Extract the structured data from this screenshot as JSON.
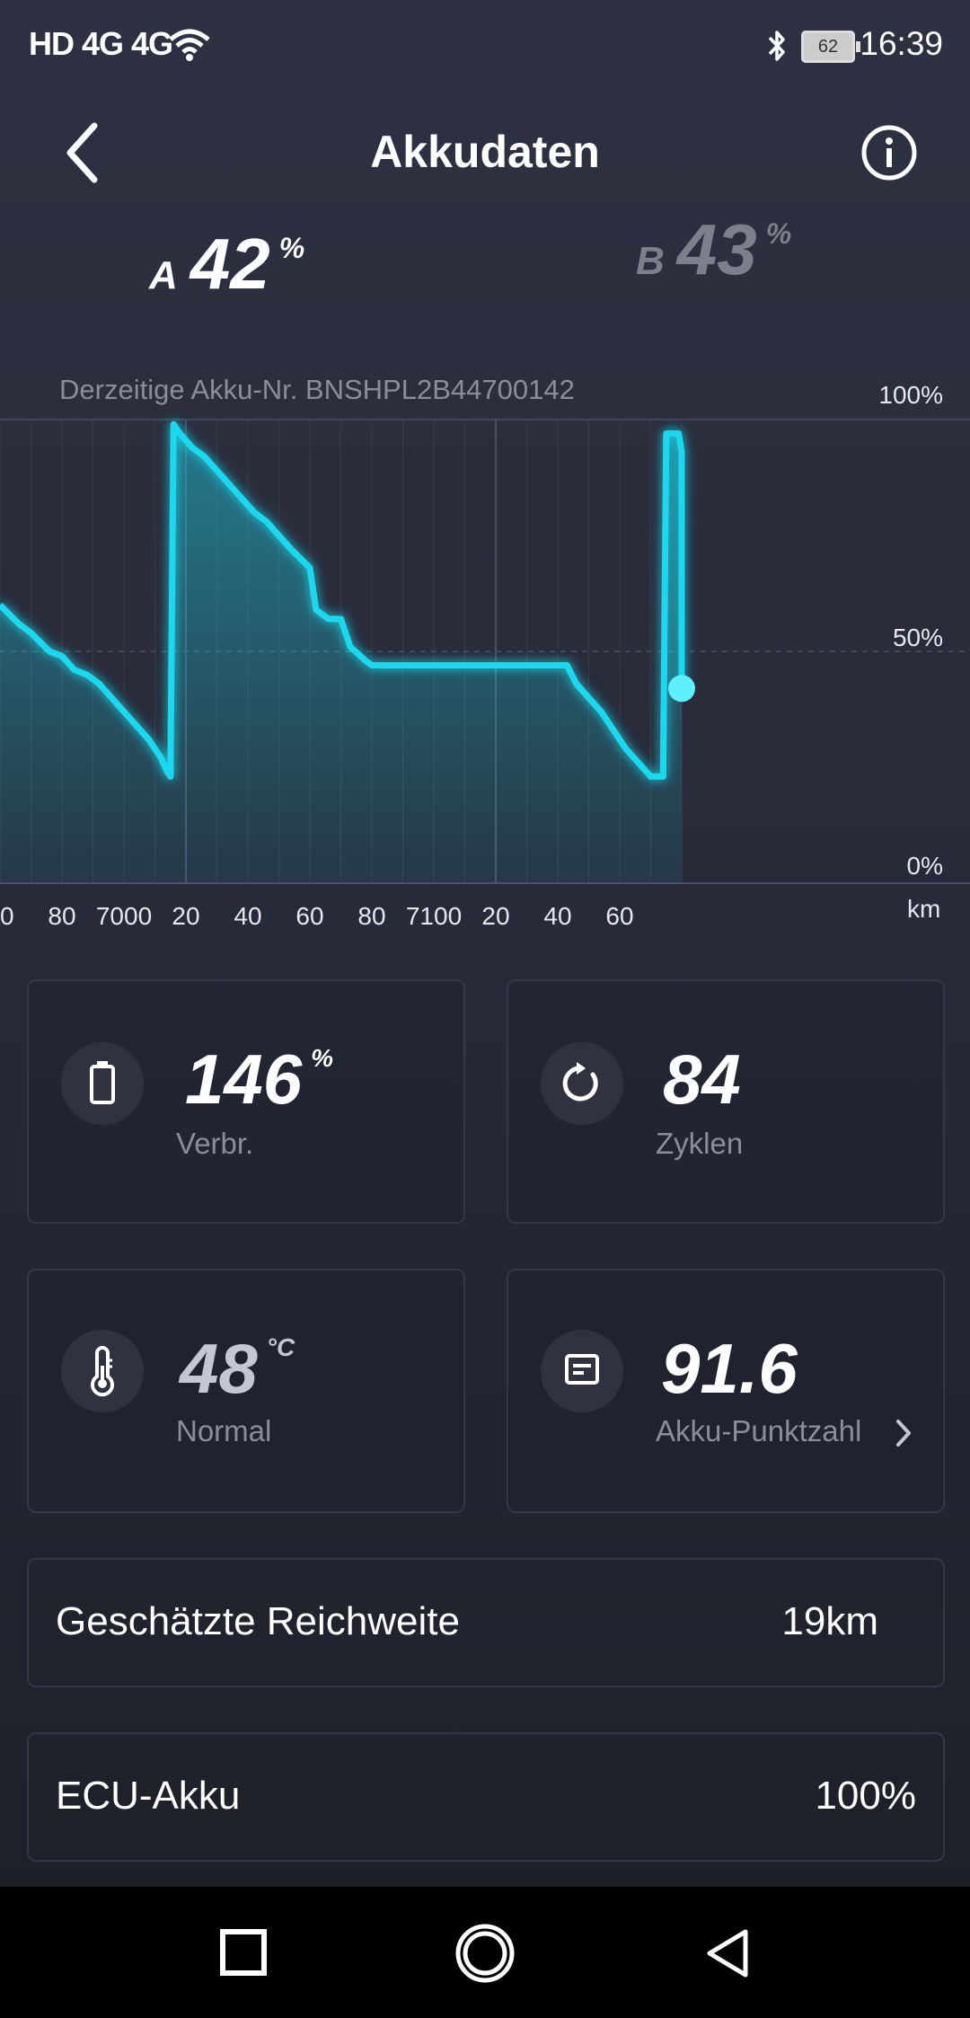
{
  "status_bar": {
    "network": "HD 4G 4G",
    "battery": "62",
    "time": "16:39"
  },
  "header": {
    "title": "Akkudaten"
  },
  "tabs": [
    {
      "letter": "A",
      "value": "42",
      "unit": "%",
      "selected": true
    },
    {
      "letter": "B",
      "value": "43",
      "unit": "%",
      "selected": false
    }
  ],
  "serial_text": "Derzeitige Akku-Nr. BNSHPL2B44700142",
  "chart_data": {
    "type": "area",
    "x_unit": "km",
    "x_ticks": [
      "0",
      "80",
      "7000",
      "20",
      "40",
      "60",
      "80",
      "7100",
      "20",
      "40",
      "60"
    ],
    "y_ticks": [
      "100%",
      "50%",
      "0%"
    ],
    "ylim": [
      0,
      100
    ],
    "color": "#1ad8ee",
    "series": [
      {
        "values": [
          [
            6940,
            60
          ],
          [
            6946,
            56
          ],
          [
            6950,
            54
          ],
          [
            6956,
            50
          ],
          [
            6960,
            49
          ],
          [
            6964,
            46
          ],
          [
            6968,
            45
          ],
          [
            6972,
            43
          ],
          [
            6976,
            40
          ],
          [
            6980,
            37
          ],
          [
            6984,
            34
          ],
          [
            6988,
            31
          ],
          [
            6992,
            27
          ],
          [
            6994,
            24
          ],
          [
            6995,
            23
          ],
          [
            6996,
            99
          ],
          [
            6998,
            97
          ],
          [
            7002,
            94
          ],
          [
            7006,
            92
          ],
          [
            7010,
            89
          ],
          [
            7014,
            86
          ],
          [
            7018,
            83
          ],
          [
            7022,
            80
          ],
          [
            7026,
            78
          ],
          [
            7030,
            75
          ],
          [
            7034,
            72
          ],
          [
            7037,
            70
          ],
          [
            7040,
            68
          ],
          [
            7042,
            59
          ],
          [
            7046,
            57
          ],
          [
            7050,
            57
          ],
          [
            7053,
            51
          ],
          [
            7058,
            48
          ],
          [
            7060,
            47
          ],
          [
            7123,
            47
          ],
          [
            7126,
            43
          ],
          [
            7130,
            40
          ],
          [
            7134,
            37
          ],
          [
            7138,
            33
          ],
          [
            7142,
            29
          ],
          [
            7146,
            26
          ],
          [
            7150,
            23
          ],
          [
            7154,
            23
          ],
          [
            7155,
            97
          ],
          [
            7159,
            97
          ],
          [
            7160,
            93
          ],
          [
            7160,
            42
          ]
        ]
      }
    ],
    "current_value": 42
  },
  "stats": {
    "wear": {
      "icon": "battery-icon",
      "value": "146",
      "unit": "%",
      "label": "Verbr."
    },
    "cycles": {
      "icon": "refresh-icon",
      "value": "84",
      "label": "Zyklen"
    },
    "temperature": {
      "icon": "thermometer-icon",
      "value": "48",
      "unit": "°C",
      "label": "Normal"
    },
    "score": {
      "icon": "document-icon",
      "value": "91.6",
      "label": "Akku-Punktzahl"
    }
  },
  "rows": [
    {
      "label": "Geschätzte Reichweite",
      "value": "19km"
    },
    {
      "label": "ECU-Akku",
      "value": "100%"
    }
  ]
}
